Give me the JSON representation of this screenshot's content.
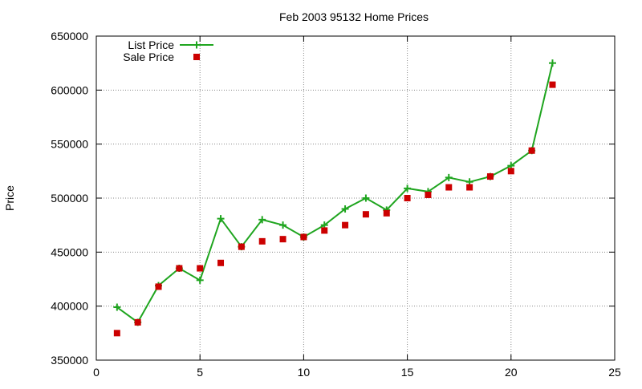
{
  "chart_data": {
    "type": "line",
    "title": "Feb 2003 95132 Home Prices",
    "xlabel": "",
    "ylabel": "Price",
    "xlim": [
      0,
      25
    ],
    "ylim": [
      350000,
      650000
    ],
    "x_ticks": [
      0,
      5,
      10,
      15,
      20,
      25
    ],
    "y_ticks": [
      350000,
      400000,
      450000,
      500000,
      550000,
      600000,
      650000
    ],
    "grid": true,
    "legend_position": "top-left",
    "series": [
      {
        "name": "List Price",
        "style": "line-with-plus-markers",
        "color": "#1fa51f",
        "x": [
          1,
          2,
          3,
          4,
          5,
          6,
          7,
          8,
          9,
          10,
          11,
          12,
          13,
          14,
          15,
          16,
          17,
          18,
          19,
          20,
          21,
          22
        ],
        "values": [
          399000,
          385000,
          419000,
          435000,
          424000,
          481000,
          455000,
          480000,
          475000,
          464000,
          475000,
          490000,
          500000,
          489000,
          509000,
          506000,
          519000,
          515000,
          520000,
          530000,
          544000,
          625000
        ]
      },
      {
        "name": "Sale Price",
        "style": "square-markers",
        "color": "#cc0000",
        "x": [
          1,
          2,
          3,
          4,
          5,
          6,
          7,
          8,
          9,
          10,
          11,
          12,
          13,
          14,
          15,
          16,
          17,
          18,
          19,
          20,
          21,
          22
        ],
        "values": [
          375000,
          385000,
          418000,
          435000,
          435000,
          440000,
          455000,
          460000,
          462000,
          464000,
          470000,
          475000,
          485000,
          486000,
          500000,
          503000,
          510000,
          510000,
          520000,
          525000,
          544000,
          605000
        ]
      }
    ]
  }
}
